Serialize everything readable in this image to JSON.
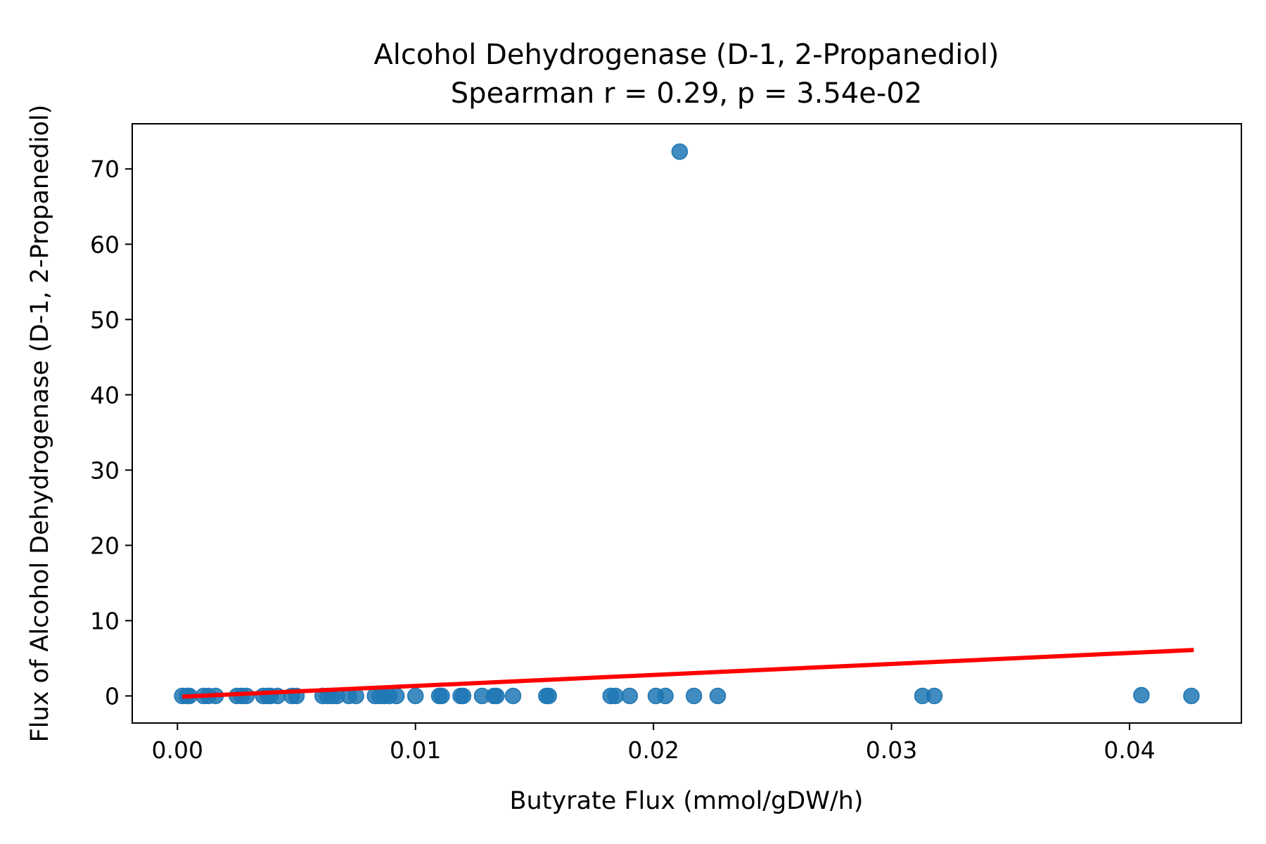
{
  "chart_data": {
    "type": "scatter",
    "title": "Alcohol Dehydrogenase (D-1, 2-Propanediol)",
    "subtitle": "Spearman r = 0.29, p = 3.54e-02",
    "xlabel": "Butyrate Flux (mmol/gDW/h)",
    "ylabel": "Flux of Alcohol Dehydrogenase (D-1, 2-Propanediol)",
    "xlim": [
      -0.0019,
      0.0447
    ],
    "ylim": [
      -3.6,
      76
    ],
    "x_ticks": [
      {
        "value": 0.0,
        "label": "0.00"
      },
      {
        "value": 0.01,
        "label": "0.01"
      },
      {
        "value": 0.02,
        "label": "0.02"
      },
      {
        "value": 0.03,
        "label": "0.03"
      },
      {
        "value": 0.04,
        "label": "0.04"
      }
    ],
    "y_ticks": [
      {
        "value": 0,
        "label": "0"
      },
      {
        "value": 10,
        "label": "10"
      },
      {
        "value": 20,
        "label": "20"
      },
      {
        "value": 30,
        "label": "30"
      },
      {
        "value": 40,
        "label": "40"
      },
      {
        "value": 50,
        "label": "50"
      },
      {
        "value": 60,
        "label": "60"
      },
      {
        "value": 70,
        "label": "70"
      }
    ],
    "grid": false,
    "legend": "none",
    "points": {
      "color": "#1f77b4",
      "x": [
        0.0002,
        0.0004,
        0.0005,
        0.0011,
        0.0013,
        0.0016,
        0.0025,
        0.0027,
        0.0029,
        0.0036,
        0.0038,
        0.0039,
        0.0042,
        0.0048,
        0.005,
        0.0061,
        0.0063,
        0.0065,
        0.0067,
        0.0072,
        0.0075,
        0.0083,
        0.0085,
        0.0087,
        0.0089,
        0.0092,
        0.01,
        0.011,
        0.0111,
        0.0119,
        0.012,
        0.0128,
        0.0133,
        0.0134,
        0.0141,
        0.0155,
        0.0156,
        0.0182,
        0.0184,
        0.019,
        0.0201,
        0.0205,
        0.0211,
        0.0217,
        0.0227,
        0.0313,
        0.0318,
        0.0405,
        0.0426
      ],
      "y": [
        0.0,
        0.0,
        0.0,
        0.0,
        0.0,
        0.0,
        0.0,
        0.0,
        0.0,
        0.0,
        0.0,
        0.0,
        0.0,
        0.0,
        0.0,
        0.0,
        0.0,
        0.0,
        0.0,
        0.0,
        0.0,
        0.0,
        0.0,
        0.0,
        0.0,
        0.0,
        0.0,
        0.0,
        0.0,
        0.0,
        0.0,
        0.0,
        0.0,
        0.0,
        0.0,
        0.0,
        0.0,
        0.0,
        0.0,
        0.0,
        0.0,
        0.0,
        72.3,
        0.0,
        0.0,
        0.0,
        0.0,
        0.1,
        0.0
      ]
    },
    "fit_line": {
      "color": "#ff0000",
      "x": [
        0.0002,
        0.0427
      ],
      "y": [
        -0.1,
        6.1
      ]
    }
  }
}
